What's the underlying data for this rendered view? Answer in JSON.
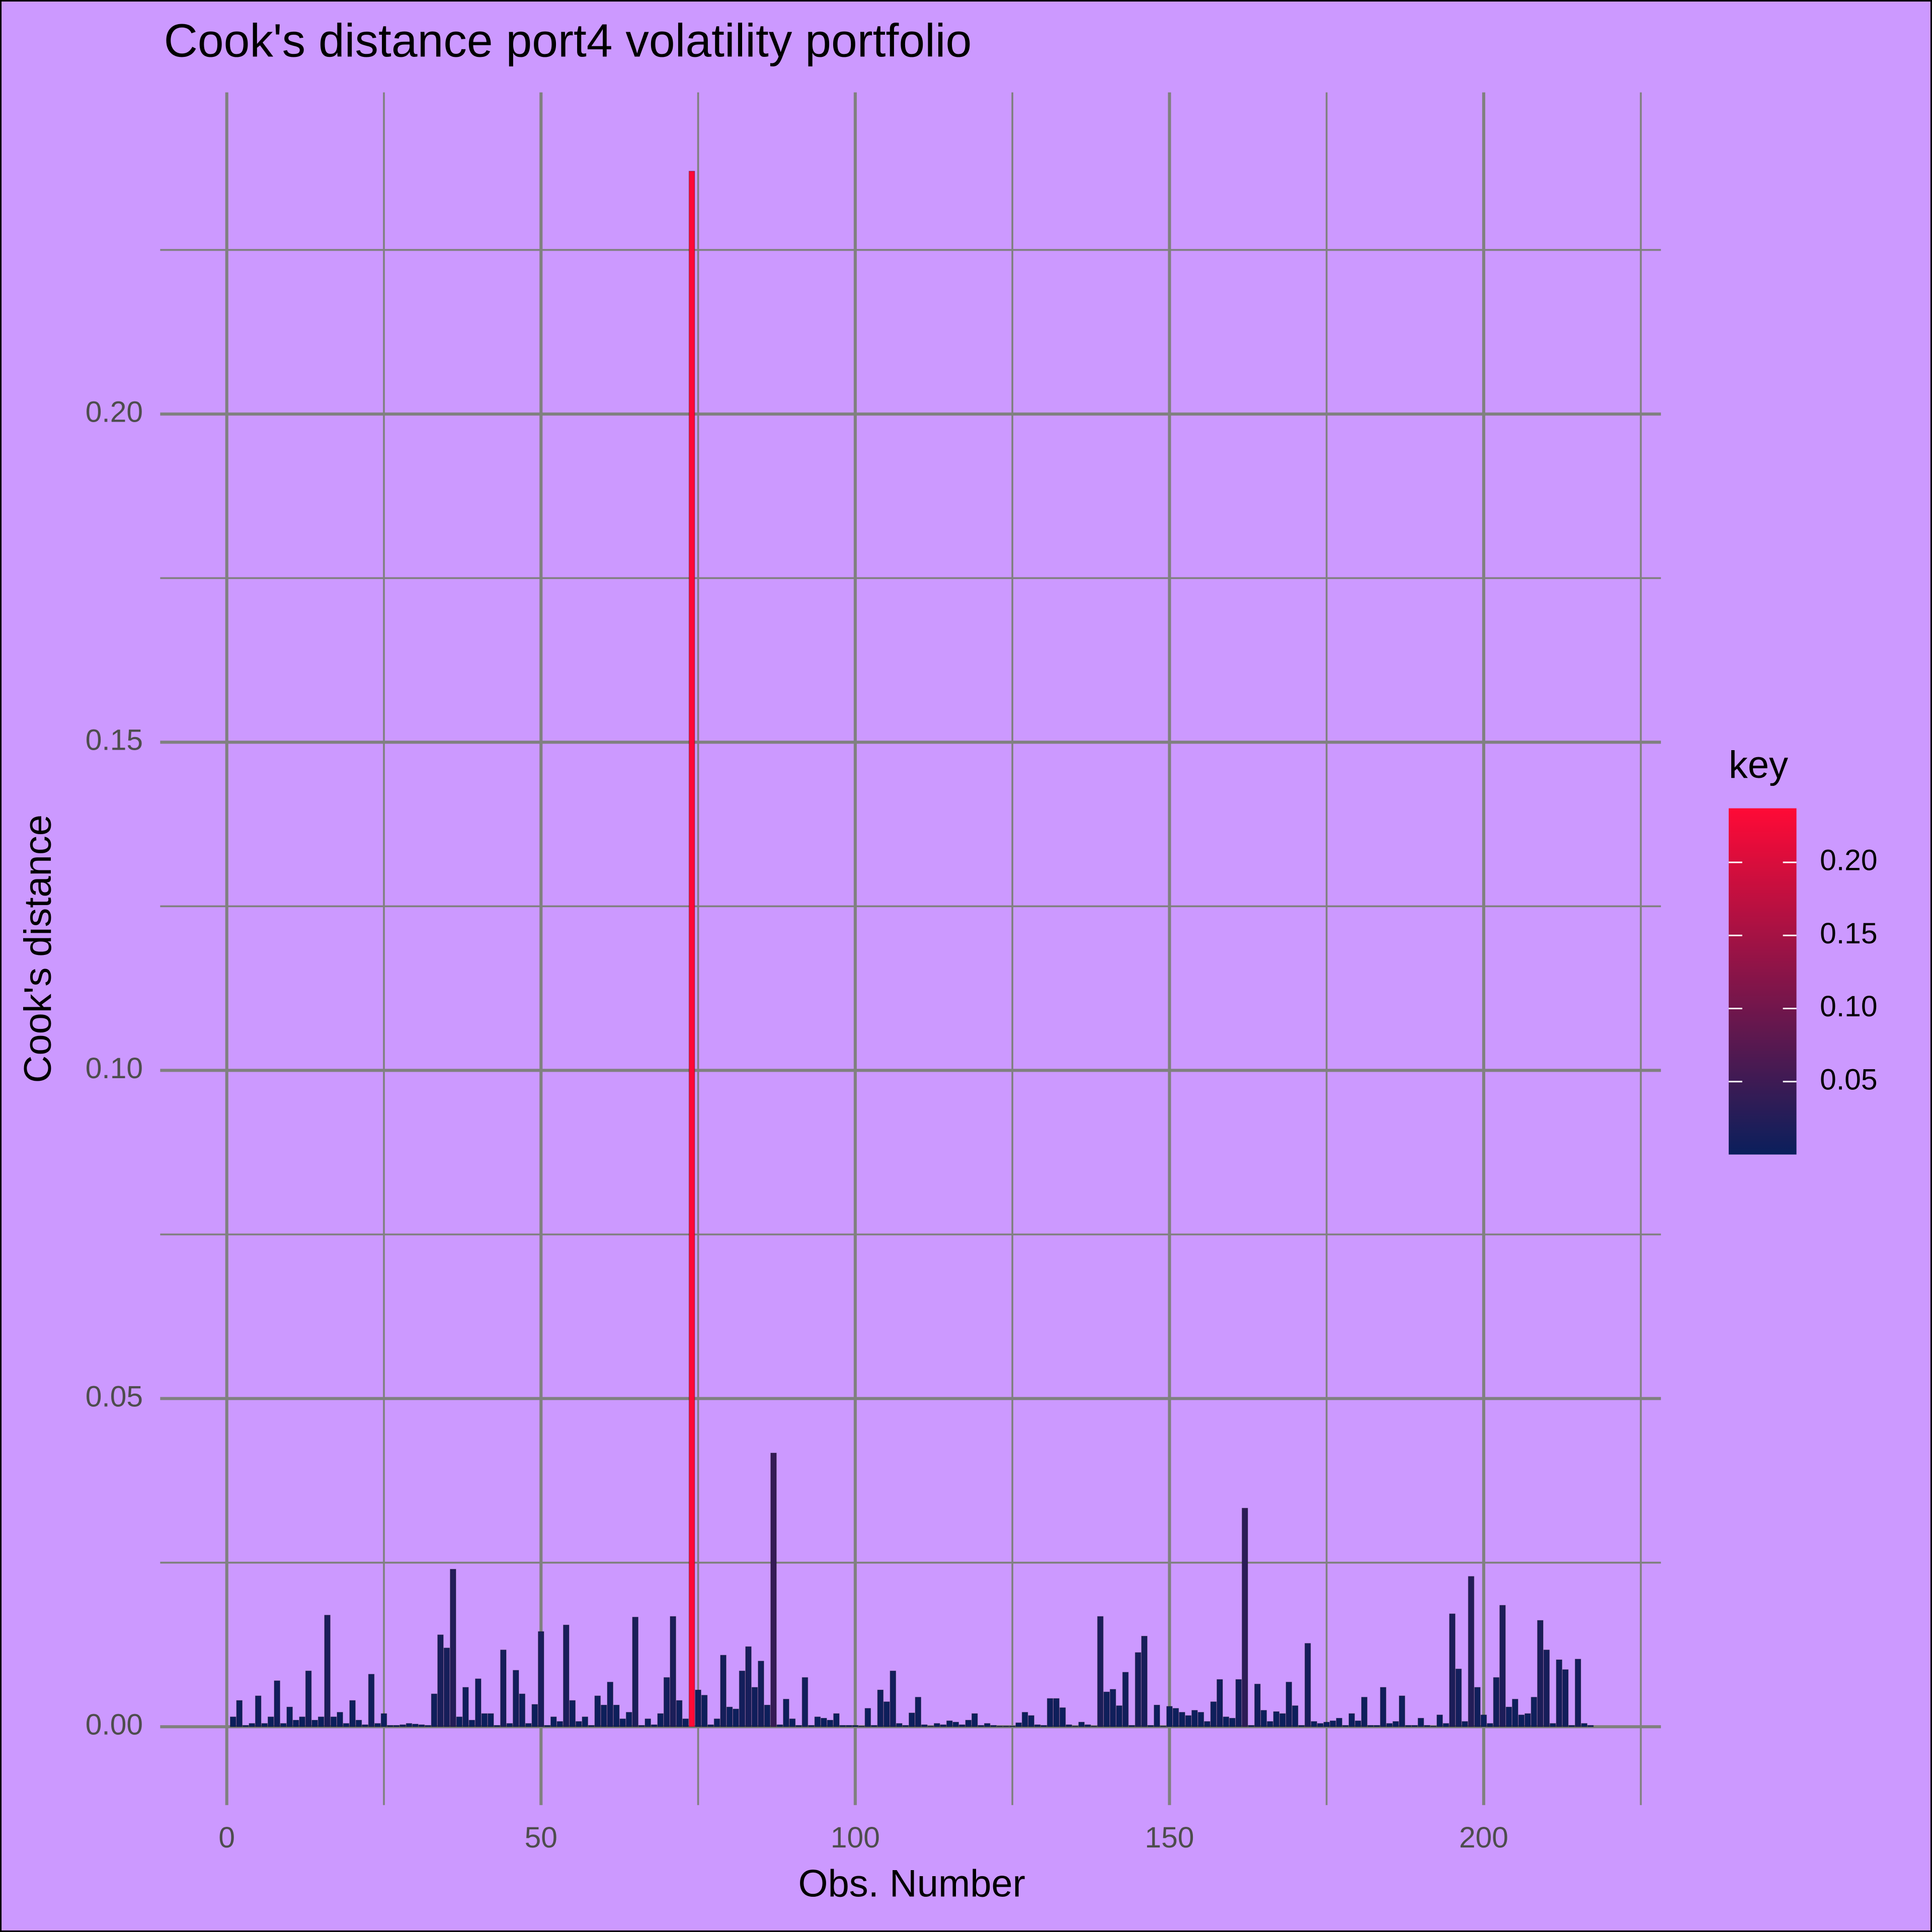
{
  "chart_data": {
    "type": "bar",
    "title": "Cook's distance port4 volatility portfolio",
    "x_label": "Obs. Number",
    "y_label": "Cook's distance",
    "x": [
      1,
      2,
      3,
      4,
      5,
      6,
      7,
      8,
      9,
      10,
      11,
      12,
      13,
      14,
      15,
      16,
      17,
      18,
      19,
      20,
      21,
      22,
      23,
      24,
      25,
      26,
      27,
      28,
      29,
      30,
      31,
      32,
      33,
      34,
      35,
      36,
      37,
      38,
      39,
      40,
      41,
      42,
      43,
      44,
      45,
      46,
      47,
      48,
      49,
      50,
      51,
      52,
      53,
      54,
      55,
      56,
      57,
      58,
      59,
      60,
      61,
      62,
      63,
      64,
      65,
      66,
      67,
      68,
      69,
      70,
      71,
      72,
      73,
      74,
      75,
      76,
      77,
      78,
      79,
      80,
      81,
      82,
      83,
      84,
      85,
      86,
      87,
      88,
      89,
      90,
      91,
      92,
      93,
      94,
      95,
      96,
      97,
      98,
      99,
      100,
      101,
      102,
      103,
      104,
      105,
      106,
      107,
      108,
      109,
      110,
      111,
      112,
      113,
      114,
      115,
      116,
      117,
      118,
      119,
      120,
      121,
      122,
      123,
      124,
      125,
      126,
      127,
      128,
      129,
      130,
      131,
      132,
      133,
      134,
      135,
      136,
      137,
      138,
      139,
      140,
      141,
      142,
      143,
      144,
      145,
      146,
      147,
      148,
      149,
      150,
      151,
      152,
      153,
      154,
      155,
      156,
      157,
      158,
      159,
      160,
      161,
      162,
      163,
      164,
      165,
      166,
      167,
      168,
      169,
      170,
      171,
      172,
      173,
      174,
      175,
      176,
      177,
      178,
      179,
      180,
      181,
      182,
      183,
      184,
      185,
      186,
      187,
      188,
      189,
      190,
      191,
      192,
      193,
      194,
      195,
      196,
      197,
      198,
      199,
      200,
      201,
      202,
      203,
      204,
      205,
      206,
      207,
      208,
      209,
      210,
      211,
      212,
      213,
      214,
      215,
      216,
      217
    ],
    "values": [
      0.0015,
      0.004,
      0.0002,
      0.0005,
      0.0047,
      0.0005,
      0.0015,
      0.007,
      0.0005,
      0.003,
      0.001,
      0.0015,
      0.0085,
      0.001,
      0.0015,
      0.017,
      0.0015,
      0.0022,
      0.0005,
      0.004,
      0.001,
      0.0003,
      0.008,
      0.0005,
      0.002,
      0.0002,
      0.0002,
      0.0003,
      0.0005,
      0.0004,
      0.0003,
      0.0002,
      0.005,
      0.014,
      0.012,
      0.024,
      0.0015,
      0.006,
      0.001,
      0.0073,
      0.002,
      0.002,
      0.0002,
      0.0117,
      0.0005,
      0.0086,
      0.005,
      0.0005,
      0.0034,
      0.0145,
      0.0002,
      0.0015,
      0.0008,
      0.0155,
      0.004,
      0.0008,
      0.0015,
      0.0002,
      0.0047,
      0.0033,
      0.0068,
      0.0033,
      0.0012,
      0.0022,
      0.0167,
      0.0002,
      0.0012,
      0.0003,
      0.002,
      0.0075,
      0.0168,
      0.004,
      0.0012,
      0.237,
      0.0056,
      0.0048,
      0.0003,
      0.0012,
      0.0109,
      0.003,
      0.0027,
      0.0085,
      0.0122,
      0.006,
      0.01,
      0.0033,
      0.0417,
      0.0003,
      0.0042,
      0.0012,
      0.0002,
      0.0075,
      0.0002,
      0.0015,
      0.0013,
      0.001,
      0.002,
      0.0002,
      0.0002,
      0.0002,
      0.0001,
      0.0028,
      0.0002,
      0.0056,
      0.0038,
      0.0085,
      0.0005,
      0.0002,
      0.0021,
      0.0045,
      0.0003,
      0.0001,
      0.0005,
      0.0003,
      0.0009,
      0.0007,
      0.0003,
      0.001,
      0.002,
      0.0002,
      0.0005,
      0.0002,
      0.0001,
      0.0001,
      0.0001,
      0.0006,
      0.0022,
      0.0017,
      0.0003,
      0.0002,
      0.0043,
      0.0043,
      0.0029,
      0.0003,
      0.0001,
      0.0007,
      0.0003,
      0.0001,
      0.0168,
      0.0053,
      0.0057,
      0.0032,
      0.0083,
      0.0002,
      0.0113,
      0.0138,
      0.0002,
      0.0033,
      0.0001,
      0.0031,
      0.0028,
      0.0022,
      0.0017,
      0.0025,
      0.0022,
      0.0008,
      0.0038,
      0.0072,
      0.0015,
      0.0013,
      0.0072,
      0.0333,
      0.0002,
      0.0065,
      0.0025,
      0.0008,
      0.0023,
      0.002,
      0.0068,
      0.0032,
      0.0002,
      0.0127,
      0.0008,
      0.0005,
      0.0007,
      0.0009,
      0.0013,
      0.0002,
      0.002,
      0.0009,
      0.0045,
      0.0002,
      0.0002,
      0.006,
      0.0005,
      0.0008,
      0.0047,
      0.0002,
      0.0002,
      0.0013,
      0.0002,
      0.0001,
      0.0018,
      0.0005,
      0.0172,
      0.0088,
      0.0008,
      0.0229,
      0.006,
      0.0018,
      0.0005,
      0.0075,
      0.0185,
      0.003,
      0.0042,
      0.0018,
      0.002,
      0.0045,
      0.0162,
      0.0117,
      0.0005,
      0.0102,
      0.0087,
      0.0002,
      0.0103,
      0.0005,
      0.0002
    ],
    "xlim": [
      -10.6,
      228.2
    ],
    "ylim": [
      -0.011,
      0.249
    ],
    "xticks": [
      0,
      50,
      100,
      150,
      200
    ],
    "x_minor_ticks": [
      25,
      75,
      125,
      175,
      225
    ],
    "yticks": [
      {
        "value": 0,
        "label": "0.00"
      },
      0.05,
      {
        "value": 0.1,
        "label": "0.10"
      },
      0.15,
      {
        "value": 0.2,
        "label": "0.20"
      }
    ],
    "y_minor_ticks": [
      0.025,
      0.075,
      0.125,
      0.175,
      0.225
    ],
    "grid": true,
    "background": "#cc99ff",
    "legend": {
      "title": "key",
      "position": "right",
      "low_color": "#0a1f5c",
      "high_color": "#ff0a36",
      "limits": [
        0.0001,
        0.237
      ],
      "ticks": [
        0.05,
        {
          "value": 0.1,
          "label": "0.10"
        },
        0.15,
        {
          "value": 0.2,
          "label": "0.20"
        }
      ]
    }
  }
}
